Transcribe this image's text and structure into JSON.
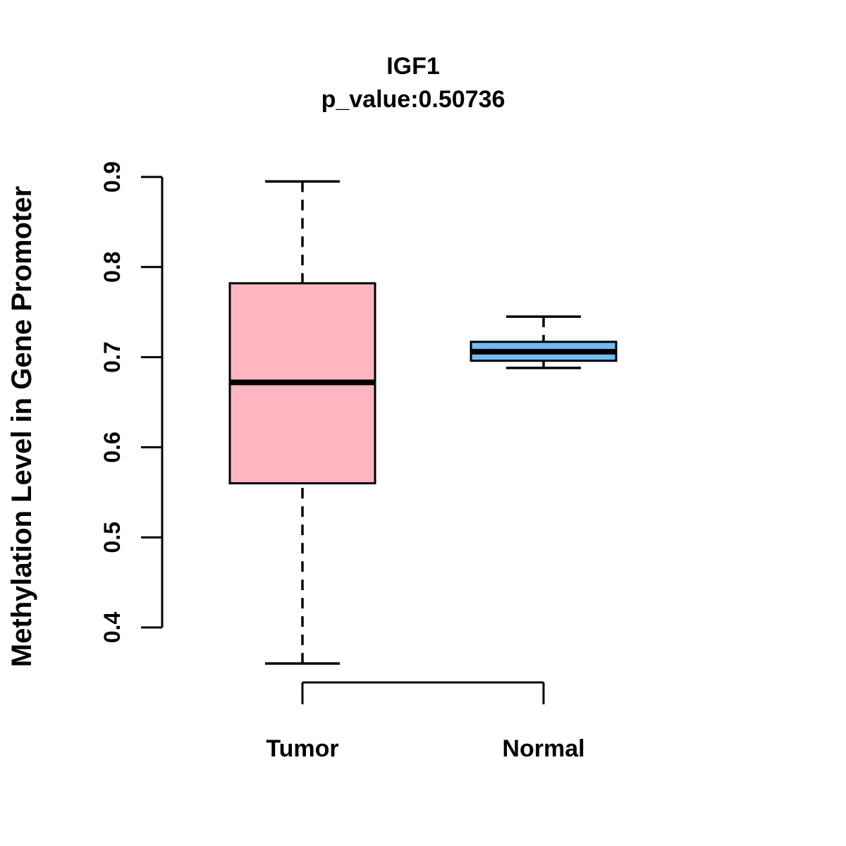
{
  "figure": {
    "title": "IGF1",
    "subtitle": "p_value:0.50736",
    "y_axis_label": "Methylation Level in Gene Promoter"
  },
  "chart_data": {
    "type": "boxplot",
    "title": "IGF1",
    "subtitle": "p_value:0.50736",
    "gene": "IGF1",
    "p_value": 0.50736,
    "xlabel": "",
    "ylabel": "Methylation Level in Gene Promoter",
    "categories": [
      "Tumor",
      "Normal"
    ],
    "series": [
      {
        "name": "Tumor",
        "lower_whisker": 0.36,
        "q1": 0.56,
        "median": 0.672,
        "q3": 0.782,
        "upper_whisker": 0.895,
        "fill_color": "#FFB6C1"
      },
      {
        "name": "Normal",
        "lower_whisker": 0.688,
        "q1": 0.696,
        "median": 0.706,
        "q3": 0.717,
        "upper_whisker": 0.745,
        "fill_color": "#74BBF3"
      }
    ],
    "yticks": [
      0.4,
      0.5,
      0.6,
      0.7,
      0.8,
      0.9
    ],
    "ylim": [
      0.34,
      0.95
    ],
    "grid": false,
    "legend": "none",
    "whisker_line_style": "dashed",
    "colors": {
      "tumor_fill": "#FFB6C1",
      "normal_fill": "#74BBF3",
      "stroke": "#000000",
      "background": "#FFFFFF"
    }
  }
}
